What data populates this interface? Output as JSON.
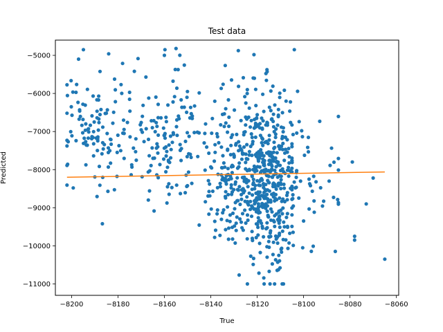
{
  "chart_data": {
    "type": "scatter",
    "title": "Test data",
    "xlabel": "True",
    "ylabel": "Predicted",
    "xlim": [
      -8207,
      -8059
    ],
    "ylim": [
      -11300,
      -4600
    ],
    "xticks": [
      -8200,
      -8180,
      -8160,
      -8140,
      -8120,
      -8100,
      -8080,
      -8060
    ],
    "yticks": [
      -11000,
      -10000,
      -9000,
      -8000,
      -7000,
      -6000,
      -5000
    ],
    "grid": false,
    "colors": {
      "points": "#1f77b4",
      "fit_line": "#ff7f0e"
    },
    "series": [
      {
        "kind": "scatter",
        "generator": {
          "seed": 7,
          "clusters": [
            {
              "n": 120,
              "x_mean": -8188,
              "x_sd": 8,
              "x_min": -8202,
              "x_max": -8170,
              "y_mean": -6900,
              "y_sd": 800
            },
            {
              "n": 130,
              "x_mean": -8158,
              "x_sd": 8,
              "x_min": -8175,
              "x_max": -8140,
              "y_mean": -7200,
              "y_sd": 900
            },
            {
              "n": 360,
              "x_mean": -8125,
              "x_sd": 8,
              "x_min": -8145,
              "x_max": -8105,
              "y_mean": -8000,
              "y_sd": 1100
            },
            {
              "n": 260,
              "x_mean": -8113,
              "x_sd": 5,
              "x_min": -8125,
              "x_max": -8100,
              "y_mean": -8300,
              "y_sd": 1150
            },
            {
              "n": 50,
              "x_mean": -8095,
              "x_sd": 8,
              "x_min": -8105,
              "x_max": -8085,
              "y_mean": -8100,
              "y_sd": 900
            }
          ],
          "extra_points": [
            {
              "x": -8073,
              "y": -8900
            },
            {
              "x": -8078,
              "y": -9750
            },
            {
              "x": -8078,
              "y": -9850
            },
            {
              "x": -8070,
              "y": -8220
            },
            {
              "x": -8065,
              "y": -10350
            },
            {
              "x": -8079,
              "y": -7800
            },
            {
              "x": -8089,
              "y": -8300
            },
            {
              "x": -8117,
              "y": -11000
            },
            {
              "x": -8155,
              "y": -4820
            },
            {
              "x": -8160,
              "y": -5000
            },
            {
              "x": -8197,
              "y": -5100
            }
          ]
        }
      },
      {
        "kind": "line",
        "x": [
          -8202,
          -8065
        ],
        "y": [
          -8200,
          -8060
        ]
      }
    ]
  }
}
